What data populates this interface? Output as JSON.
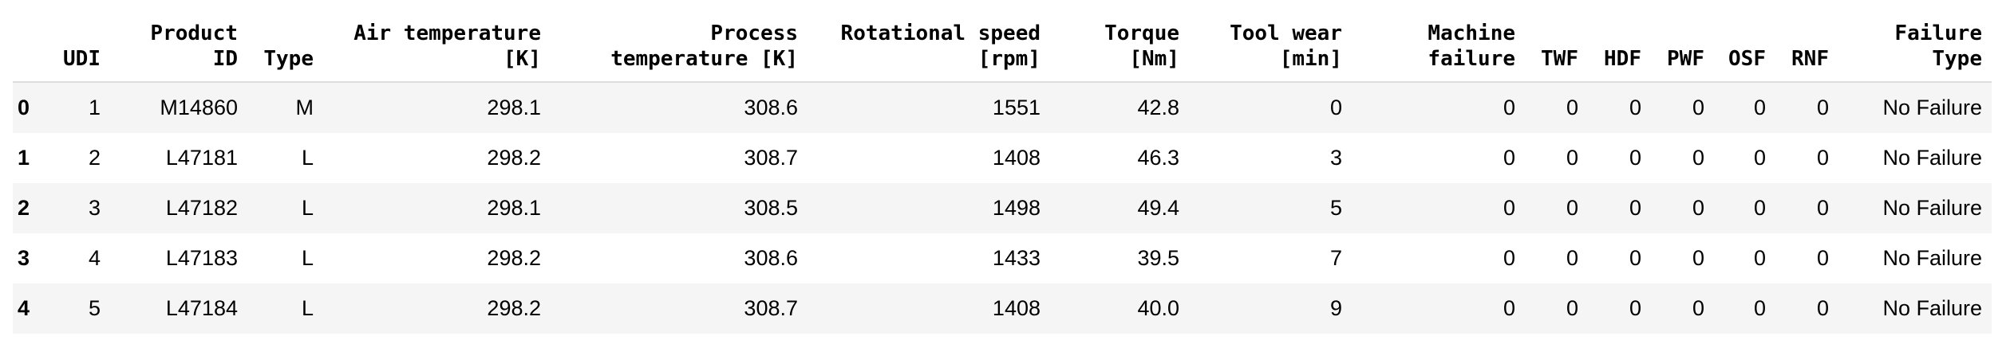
{
  "table": {
    "columns": [
      [
        "UDI"
      ],
      [
        "Product",
        "ID"
      ],
      [
        "Type"
      ],
      [
        "Air temperature",
        "[K]"
      ],
      [
        "Process",
        "temperature [K]"
      ],
      [
        "Rotational speed",
        "[rpm]"
      ],
      [
        "Torque",
        "[Nm]"
      ],
      [
        "Tool wear",
        "[min]"
      ],
      [
        "Machine",
        "failure"
      ],
      [
        "TWF"
      ],
      [
        "HDF"
      ],
      [
        "PWF"
      ],
      [
        "OSF"
      ],
      [
        "RNF"
      ],
      [
        "Failure",
        "Type"
      ]
    ],
    "index": [
      "0",
      "1",
      "2",
      "3",
      "4"
    ],
    "rows": [
      [
        "1",
        "M14860",
        "M",
        "298.1",
        "308.6",
        "1551",
        "42.8",
        "0",
        "0",
        "0",
        "0",
        "0",
        "0",
        "0",
        "No Failure"
      ],
      [
        "2",
        "L47181",
        "L",
        "298.2",
        "308.7",
        "1408",
        "46.3",
        "3",
        "0",
        "0",
        "0",
        "0",
        "0",
        "0",
        "No Failure"
      ],
      [
        "3",
        "L47182",
        "L",
        "298.1",
        "308.5",
        "1498",
        "49.4",
        "5",
        "0",
        "0",
        "0",
        "0",
        "0",
        "0",
        "No Failure"
      ],
      [
        "4",
        "L47183",
        "L",
        "298.2",
        "308.6",
        "1433",
        "39.5",
        "7",
        "0",
        "0",
        "0",
        "0",
        "0",
        "0",
        "No Failure"
      ],
      [
        "5",
        "L47184",
        "L",
        "298.2",
        "308.7",
        "1408",
        "40.0",
        "9",
        "0",
        "0",
        "0",
        "0",
        "0",
        "0",
        "No Failure"
      ]
    ]
  }
}
